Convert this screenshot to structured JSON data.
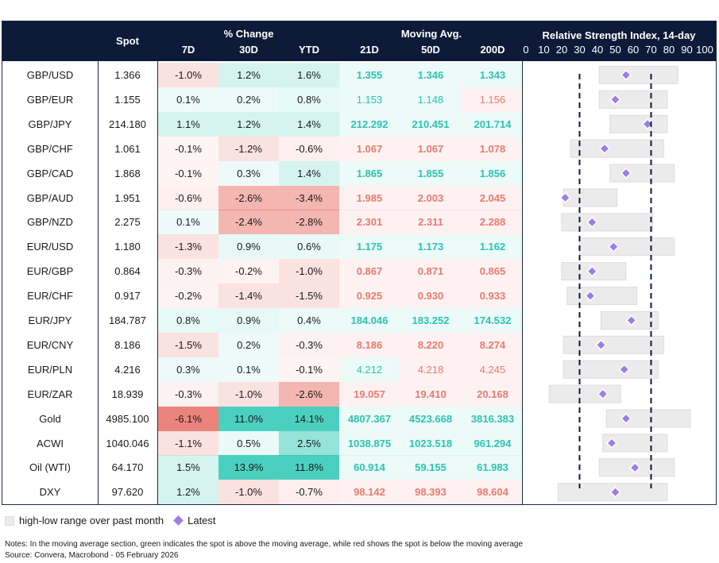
{
  "header": {
    "spot": "Spot",
    "pct_change": "% Change",
    "col_7d": "7D",
    "col_30d": "30D",
    "col_ytd": "YTD",
    "moving_avg": "Moving Avg.",
    "col_21d": "21D",
    "col_50d": "50D",
    "col_200d": "200D",
    "rsi_title": "Relative Strength Index, 14-day",
    "rsi_ticks": [
      "0",
      "10",
      "20",
      "30",
      "40",
      "50",
      "60",
      "70",
      "80",
      "90",
      "100"
    ]
  },
  "colors": {
    "header_bg": "#0d1b38",
    "green_text": "#2cc3b3",
    "red_text": "#e77b6f",
    "diamond": "#9b7fe6",
    "range_bar": "#ebebeb"
  },
  "chart_data": {
    "type": "table",
    "rsi_axis": [
      0,
      100
    ],
    "rsi_reference_lines": [
      30,
      70
    ],
    "rows": [
      {
        "pair": "GBP/USD",
        "spot": "1.366",
        "d7": "-1.0%",
        "d30": "1.2%",
        "ytd": "1.6%",
        "ma21": "1.355",
        "ma50": "1.346",
        "ma200": "1.343",
        "ma_bold": true,
        "rsi": {
          "low": 41,
          "high": 85,
          "latest": 56
        }
      },
      {
        "pair": "GBP/EUR",
        "spot": "1.155",
        "d7": "0.1%",
        "d30": "0.2%",
        "ytd": "0.8%",
        "ma21": "1.153",
        "ma50": "1.148",
        "ma200": "1.156",
        "ma_bold": false,
        "rsi": {
          "low": 41,
          "high": 79,
          "latest": 50
        }
      },
      {
        "pair": "GBP/JPY",
        "spot": "214.180",
        "d7": "1.1%",
        "d30": "1.2%",
        "ytd": "1.4%",
        "ma21": "212.292",
        "ma50": "210.451",
        "ma200": "201.714",
        "ma_bold": true,
        "rsi": {
          "low": 47,
          "high": 79,
          "latest": 68
        }
      },
      {
        "pair": "GBP/CHF",
        "spot": "1.061",
        "d7": "-0.1%",
        "d30": "-1.2%",
        "ytd": "-0.6%",
        "ma21": "1.067",
        "ma50": "1.067",
        "ma200": "1.078",
        "ma_bold": true,
        "rsi": {
          "low": 25,
          "high": 77,
          "latest": 44
        }
      },
      {
        "pair": "GBP/CAD",
        "spot": "1.868",
        "d7": "-0.1%",
        "d30": "0.3%",
        "ytd": "1.4%",
        "ma21": "1.865",
        "ma50": "1.855",
        "ma200": "1.856",
        "ma_bold": true,
        "rsi": {
          "low": 47,
          "high": 83,
          "latest": 56
        }
      },
      {
        "pair": "GBP/AUD",
        "spot": "1.951",
        "d7": "-0.6%",
        "d30": "-2.6%",
        "ytd": "-3.4%",
        "ma21": "1.985",
        "ma50": "2.003",
        "ma200": "2.045",
        "ma_bold": true,
        "rsi": {
          "low": 21,
          "high": 51,
          "latest": 22
        }
      },
      {
        "pair": "GBP/NZD",
        "spot": "2.275",
        "d7": "0.1%",
        "d30": "-2.4%",
        "ytd": "-2.8%",
        "ma21": "2.301",
        "ma50": "2.311",
        "ma200": "2.288",
        "ma_bold": true,
        "rsi": {
          "low": 20,
          "high": 71,
          "latest": 37
        }
      },
      {
        "pair": "EUR/USD",
        "spot": "1.180",
        "d7": "-1.3%",
        "d30": "0.9%",
        "ytd": "0.6%",
        "ma21": "1.175",
        "ma50": "1.173",
        "ma200": "1.162",
        "ma_bold": true,
        "rsi": {
          "low": 30,
          "high": 83,
          "latest": 49
        }
      },
      {
        "pair": "EUR/GBP",
        "spot": "0.864",
        "d7": "-0.3%",
        "d30": "-0.2%",
        "ytd": "-1.0%",
        "ma21": "0.867",
        "ma50": "0.871",
        "ma200": "0.865",
        "ma_bold": true,
        "rsi": {
          "low": 20,
          "high": 56,
          "latest": 37
        }
      },
      {
        "pair": "EUR/CHF",
        "spot": "0.917",
        "d7": "-0.2%",
        "d30": "-1.4%",
        "ytd": "-1.5%",
        "ma21": "0.925",
        "ma50": "0.930",
        "ma200": "0.933",
        "ma_bold": true,
        "rsi": {
          "low": 23,
          "high": 62,
          "latest": 36
        }
      },
      {
        "pair": "EUR/JPY",
        "spot": "184.787",
        "d7": "0.8%",
        "d30": "0.9%",
        "ytd": "0.4%",
        "ma21": "184.046",
        "ma50": "183.252",
        "ma200": "174.532",
        "ma_bold": true,
        "rsi": {
          "low": 42,
          "high": 74,
          "latest": 59
        }
      },
      {
        "pair": "EUR/CNY",
        "spot": "8.186",
        "d7": "-1.5%",
        "d30": "0.2%",
        "ytd": "-0.3%",
        "ma21": "8.186",
        "ma50": "8.220",
        "ma200": "8.274",
        "ma_bold": true,
        "rsi": {
          "low": 21,
          "high": 77,
          "latest": 42
        }
      },
      {
        "pair": "EUR/PLN",
        "spot": "4.216",
        "d7": "0.3%",
        "d30": "0.1%",
        "ytd": "-0.1%",
        "ma21": "4.212",
        "ma50": "4.218",
        "ma200": "4.245",
        "ma_bold": false,
        "rsi": {
          "low": 21,
          "high": 74,
          "latest": 55
        }
      },
      {
        "pair": "EUR/ZAR",
        "spot": "18.939",
        "d7": "-0.3%",
        "d30": "-1.0%",
        "ytd": "-2.6%",
        "ma21": "19.057",
        "ma50": "19.410",
        "ma200": "20.168",
        "ma_bold": true,
        "rsi": {
          "low": 13,
          "high": 53,
          "latest": 43
        }
      },
      {
        "pair": "Gold",
        "spot": "4985.100",
        "d7": "-6.1%",
        "d30": "11.0%",
        "ytd": "14.1%",
        "ma21": "4807.367",
        "ma50": "4523.668",
        "ma200": "3816.383",
        "ma_bold": true,
        "rsi": {
          "low": 45,
          "high": 92,
          "latest": 56
        }
      },
      {
        "pair": "ACWI",
        "spot": "1040.046",
        "d7": "-1.1%",
        "d30": "0.5%",
        "ytd": "2.5%",
        "ma21": "1038.875",
        "ma50": "1023.518",
        "ma200": "961.294",
        "ma_bold": true,
        "rsi": {
          "low": 43,
          "high": 79,
          "latest": 48
        }
      },
      {
        "pair": "Oil (WTI)",
        "spot": "64.170",
        "d7": "1.5%",
        "d30": "13.9%",
        "ytd": "11.8%",
        "ma21": "60.914",
        "ma50": "59.155",
        "ma200": "61.983",
        "ma_bold": true,
        "rsi": {
          "low": 41,
          "high": 83,
          "latest": 61
        }
      },
      {
        "pair": "DXY",
        "spot": "97.620",
        "d7": "1.2%",
        "d30": "-1.0%",
        "ytd": "-0.7%",
        "ma21": "98.142",
        "ma50": "98.393",
        "ma200": "98.604",
        "ma_bold": true,
        "rsi": {
          "low": 18,
          "high": 79,
          "latest": 50
        }
      }
    ]
  },
  "legend": {
    "range_label": "high-low range over past month",
    "latest_label": "Latest"
  },
  "notes": {
    "line1": "Notes: In the moving average section, green indicates the spot is above the moving average, while red shows the spot is below the moving average",
    "line2": "Source: Convera, Macrobond - 05 February 2026"
  }
}
